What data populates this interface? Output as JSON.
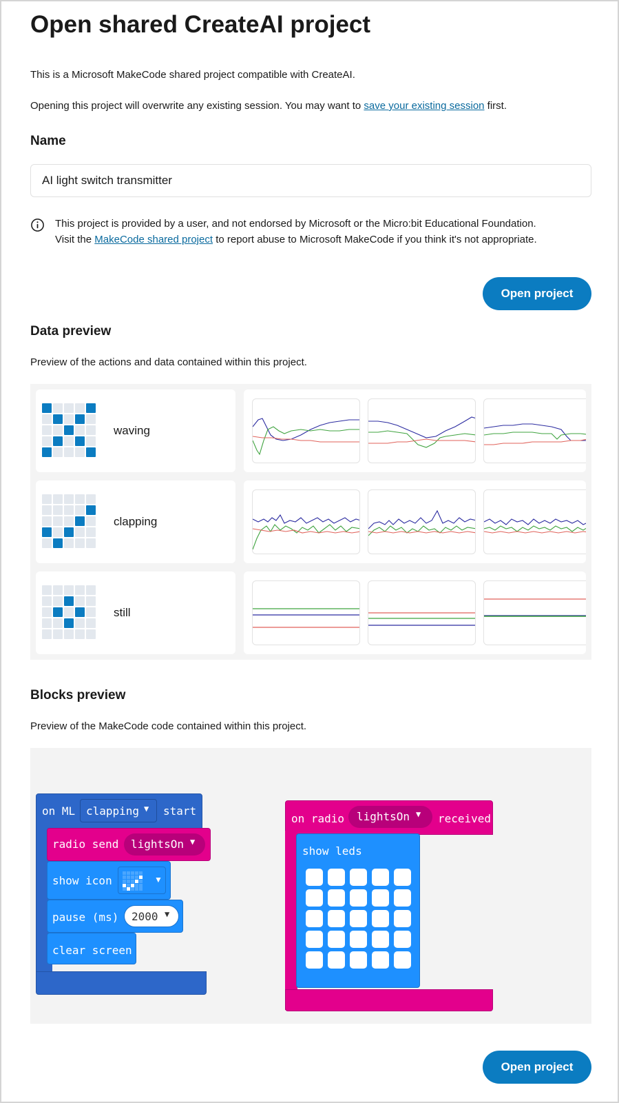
{
  "page": {
    "title": "Open shared CreateAI project",
    "intro": "This is a Microsoft MakeCode shared project compatible with CreateAI.",
    "overwrite_before": "Opening this project will overwrite any existing session. You may want to ",
    "overwrite_link": "save your existing session",
    "overwrite_after": " first."
  },
  "name_section": {
    "heading": "Name",
    "value": "AI light switch transmitter"
  },
  "notice": {
    "line1": "This project is provided by a user, and not endorsed by Microsoft or the Micro:bit Educational Foundation.",
    "line2_before": "Visit the ",
    "line2_link": "MakeCode shared project",
    "line2_after": " to report abuse to Microsoft MakeCode if you think it's not appropriate."
  },
  "buttons": {
    "open_project": "Open project"
  },
  "data_preview": {
    "heading": "Data preview",
    "description": "Preview of the actions and data contained within this project.",
    "actions": [
      {
        "name": "waving",
        "leds": [
          1,
          0,
          0,
          0,
          1,
          0,
          1,
          0,
          1,
          0,
          0,
          0,
          1,
          0,
          0,
          0,
          1,
          0,
          1,
          0,
          1,
          0,
          0,
          0,
          1
        ]
      },
      {
        "name": "clapping",
        "leds": [
          0,
          0,
          0,
          0,
          0,
          0,
          0,
          0,
          0,
          1,
          0,
          0,
          0,
          1,
          0,
          1,
          0,
          1,
          0,
          0,
          0,
          1,
          0,
          0,
          0
        ]
      },
      {
        "name": "still",
        "leds": [
          0,
          0,
          0,
          0,
          0,
          0,
          0,
          1,
          0,
          0,
          0,
          1,
          0,
          1,
          0,
          0,
          0,
          1,
          0,
          0,
          0,
          0,
          0,
          0,
          0
        ]
      }
    ],
    "colors": {
      "x": "#2b2ba0",
      "y": "#3fa33f",
      "z": "#e0625a",
      "led_on": "#0b7cc1",
      "led_off": "#e3e8ee"
    }
  },
  "blocks_preview": {
    "heading": "Blocks preview",
    "description": "Preview of the MakeCode code contained within this project.",
    "ml_block": {
      "on": "on ML",
      "event": "clapping",
      "start": "start",
      "radio_send": "radio send",
      "radio_value": "lightsOn",
      "show_icon": "show icon",
      "pause": "pause (ms)",
      "pause_value": "2000",
      "clear_screen": "clear screen"
    },
    "radio_block": {
      "on": "on radio",
      "value": "lightsOn",
      "received": "received",
      "show_leds": "show leds"
    },
    "colors": {
      "ml": "#2d67c9",
      "ml_dark": "#2455a8",
      "radio": "#e3008c",
      "radio_dark": "#b8007a",
      "basic": "#1e90ff",
      "basic_dark": "#1a73cf"
    }
  }
}
